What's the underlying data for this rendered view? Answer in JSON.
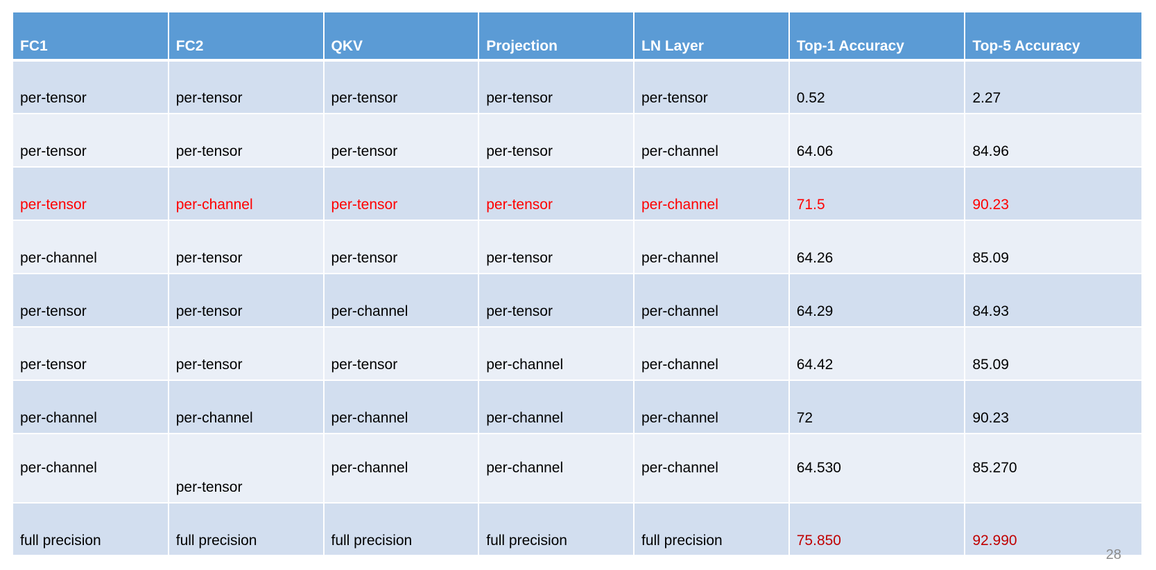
{
  "table": {
    "columns": [
      "FC1",
      "FC2",
      "QKV",
      "Projection",
      "LN Layer",
      "Top-1 Accuracy",
      "Top-5 Accuracy"
    ],
    "rows": [
      [
        "per-tensor",
        "per-tensor",
        "per-tensor",
        "per-tensor",
        "per-tensor",
        "0.52",
        "2.27"
      ],
      [
        "per-tensor",
        "per-tensor",
        "per-tensor",
        "per-tensor",
        "per-channel",
        "64.06",
        "84.96"
      ],
      [
        "per-tensor",
        "per-channel",
        "per-tensor",
        "per-tensor",
        "per-channel",
        "71.5",
        "90.23"
      ],
      [
        "per-channel",
        "per-tensor",
        "per-tensor",
        "per-tensor",
        "per-channel",
        "64.26",
        "85.09"
      ],
      [
        "per-tensor",
        "per-tensor",
        "per-channel",
        "per-tensor",
        "per-channel",
        "64.29",
        "84.93"
      ],
      [
        "per-tensor",
        "per-tensor",
        "per-tensor",
        "per-channel",
        "per-channel",
        "64.42",
        "85.09"
      ],
      [
        "per-channel",
        "per-channel",
        "per-channel",
        "per-channel",
        "per-channel",
        "72",
        "90.23"
      ],
      [
        "per-channel",
        "per-tensor",
        "per-channel",
        "per-channel",
        "per-channel",
        "64.530",
        "85.270"
      ],
      [
        "full precision",
        "full precision",
        "full precision",
        "full precision",
        "full precision",
        "75.850",
        "92.990"
      ]
    ]
  },
  "page_number": "28",
  "colors": {
    "header_bg": "#5b9bd5",
    "row_odd_bg": "#d2deef",
    "row_even_bg": "#eaeff7",
    "highlight_red": "#ff0000",
    "highlight_dark_red": "#c00000"
  }
}
